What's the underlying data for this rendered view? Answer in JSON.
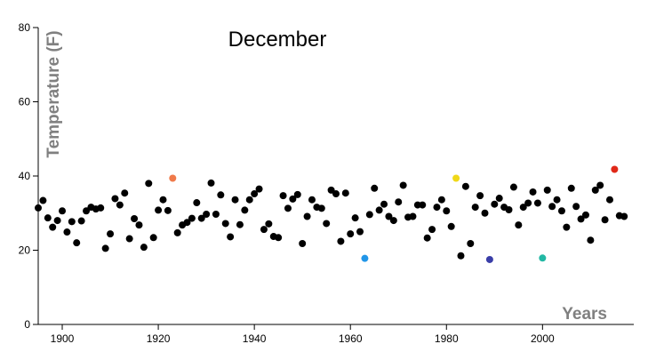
{
  "chart_data": {
    "type": "scatter",
    "title": "December",
    "xlabel": "Years",
    "ylabel": "Temperature (F)",
    "xlim": [
      1895,
      2019
    ],
    "ylim": [
      0,
      80
    ],
    "xticks": [
      1900,
      1920,
      1940,
      1960,
      1980,
      2000
    ],
    "yticks": [
      0,
      20,
      40,
      60,
      80
    ],
    "grid": false,
    "legend": "none",
    "default_color": "#000000",
    "points": [
      {
        "x": 1895,
        "y": 31.4
      },
      {
        "x": 1896,
        "y": 33.4
      },
      {
        "x": 1897,
        "y": 28.7
      },
      {
        "x": 1898,
        "y": 26.2
      },
      {
        "x": 1899,
        "y": 28.0
      },
      {
        "x": 1900,
        "y": 30.6
      },
      {
        "x": 1901,
        "y": 24.9
      },
      {
        "x": 1902,
        "y": 27.7
      },
      {
        "x": 1903,
        "y": 22.0
      },
      {
        "x": 1904,
        "y": 27.9
      },
      {
        "x": 1905,
        "y": 30.6
      },
      {
        "x": 1906,
        "y": 31.6
      },
      {
        "x": 1907,
        "y": 31.1
      },
      {
        "x": 1908,
        "y": 31.4
      },
      {
        "x": 1909,
        "y": 20.5
      },
      {
        "x": 1910,
        "y": 24.4
      },
      {
        "x": 1911,
        "y": 33.9
      },
      {
        "x": 1912,
        "y": 32.2
      },
      {
        "x": 1913,
        "y": 35.4
      },
      {
        "x": 1914,
        "y": 23.1
      },
      {
        "x": 1915,
        "y": 28.5
      },
      {
        "x": 1916,
        "y": 26.8
      },
      {
        "x": 1917,
        "y": 20.8
      },
      {
        "x": 1918,
        "y": 38.0
      },
      {
        "x": 1919,
        "y": 23.4
      },
      {
        "x": 1920,
        "y": 30.8
      },
      {
        "x": 1921,
        "y": 33.6
      },
      {
        "x": 1922,
        "y": 30.7
      },
      {
        "x": 1923,
        "y": 39.4,
        "color": "#f07a4a"
      },
      {
        "x": 1924,
        "y": 24.7
      },
      {
        "x": 1925,
        "y": 26.8
      },
      {
        "x": 1926,
        "y": 27.5
      },
      {
        "x": 1927,
        "y": 28.6
      },
      {
        "x": 1928,
        "y": 32.8
      },
      {
        "x": 1929,
        "y": 28.6
      },
      {
        "x": 1930,
        "y": 29.7
      },
      {
        "x": 1931,
        "y": 38.1
      },
      {
        "x": 1932,
        "y": 29.7
      },
      {
        "x": 1933,
        "y": 34.9
      },
      {
        "x": 1934,
        "y": 27.2
      },
      {
        "x": 1935,
        "y": 23.6
      },
      {
        "x": 1936,
        "y": 33.6
      },
      {
        "x": 1937,
        "y": 26.9
      },
      {
        "x": 1938,
        "y": 30.8
      },
      {
        "x": 1939,
        "y": 33.6
      },
      {
        "x": 1940,
        "y": 35.2
      },
      {
        "x": 1941,
        "y": 36.5
      },
      {
        "x": 1942,
        "y": 25.6
      },
      {
        "x": 1943,
        "y": 27.1
      },
      {
        "x": 1944,
        "y": 23.7
      },
      {
        "x": 1945,
        "y": 23.4
      },
      {
        "x": 1946,
        "y": 34.7
      },
      {
        "x": 1947,
        "y": 31.3
      },
      {
        "x": 1948,
        "y": 33.8
      },
      {
        "x": 1949,
        "y": 35.0
      },
      {
        "x": 1950,
        "y": 21.8
      },
      {
        "x": 1951,
        "y": 29.1
      },
      {
        "x": 1952,
        "y": 33.6
      },
      {
        "x": 1953,
        "y": 31.6
      },
      {
        "x": 1954,
        "y": 31.3
      },
      {
        "x": 1955,
        "y": 27.2
      },
      {
        "x": 1956,
        "y": 36.2
      },
      {
        "x": 1957,
        "y": 35.2
      },
      {
        "x": 1958,
        "y": 22.4
      },
      {
        "x": 1959,
        "y": 35.4
      },
      {
        "x": 1960,
        "y": 24.4
      },
      {
        "x": 1961,
        "y": 28.7
      },
      {
        "x": 1962,
        "y": 25.0
      },
      {
        "x": 1963,
        "y": 17.8,
        "color": "#2196e8"
      },
      {
        "x": 1964,
        "y": 29.6
      },
      {
        "x": 1965,
        "y": 36.7
      },
      {
        "x": 1966,
        "y": 30.8
      },
      {
        "x": 1967,
        "y": 32.4
      },
      {
        "x": 1968,
        "y": 29.1
      },
      {
        "x": 1969,
        "y": 28.0
      },
      {
        "x": 1970,
        "y": 33.0
      },
      {
        "x": 1971,
        "y": 37.5
      },
      {
        "x": 1972,
        "y": 28.9
      },
      {
        "x": 1973,
        "y": 29.1
      },
      {
        "x": 1974,
        "y": 32.2
      },
      {
        "x": 1975,
        "y": 32.2
      },
      {
        "x": 1976,
        "y": 23.3
      },
      {
        "x": 1977,
        "y": 25.6
      },
      {
        "x": 1978,
        "y": 31.6
      },
      {
        "x": 1979,
        "y": 33.6
      },
      {
        "x": 1980,
        "y": 30.6
      },
      {
        "x": 1981,
        "y": 26.4
      },
      {
        "x": 1982,
        "y": 39.4,
        "color": "#f0d818"
      },
      {
        "x": 1983,
        "y": 18.5
      },
      {
        "x": 1984,
        "y": 37.2
      },
      {
        "x": 1985,
        "y": 21.8
      },
      {
        "x": 1986,
        "y": 31.6
      },
      {
        "x": 1987,
        "y": 34.7
      },
      {
        "x": 1988,
        "y": 30.0
      },
      {
        "x": 1989,
        "y": 17.5,
        "color": "#3a3ea8"
      },
      {
        "x": 1990,
        "y": 32.4
      },
      {
        "x": 1991,
        "y": 34.0
      },
      {
        "x": 1992,
        "y": 31.6
      },
      {
        "x": 1993,
        "y": 30.9
      },
      {
        "x": 1994,
        "y": 37.0
      },
      {
        "x": 1995,
        "y": 26.8
      },
      {
        "x": 1996,
        "y": 31.6
      },
      {
        "x": 1997,
        "y": 32.7
      },
      {
        "x": 1998,
        "y": 35.7
      },
      {
        "x": 1999,
        "y": 32.7
      },
      {
        "x": 2000,
        "y": 17.9,
        "color": "#22b8a4"
      },
      {
        "x": 2001,
        "y": 36.2
      },
      {
        "x": 2002,
        "y": 31.8
      },
      {
        "x": 2003,
        "y": 33.6
      },
      {
        "x": 2004,
        "y": 30.6
      },
      {
        "x": 2005,
        "y": 26.2
      },
      {
        "x": 2006,
        "y": 36.7
      },
      {
        "x": 2007,
        "y": 31.8
      },
      {
        "x": 2008,
        "y": 28.4
      },
      {
        "x": 2009,
        "y": 29.5
      },
      {
        "x": 2010,
        "y": 22.7
      },
      {
        "x": 2011,
        "y": 36.2
      },
      {
        "x": 2012,
        "y": 37.5
      },
      {
        "x": 2013,
        "y": 28.2
      },
      {
        "x": 2014,
        "y": 33.6
      },
      {
        "x": 2015,
        "y": 41.8,
        "color": "#e02818"
      },
      {
        "x": 2016,
        "y": 29.3
      },
      {
        "x": 2017,
        "y": 29.1
      }
    ]
  }
}
